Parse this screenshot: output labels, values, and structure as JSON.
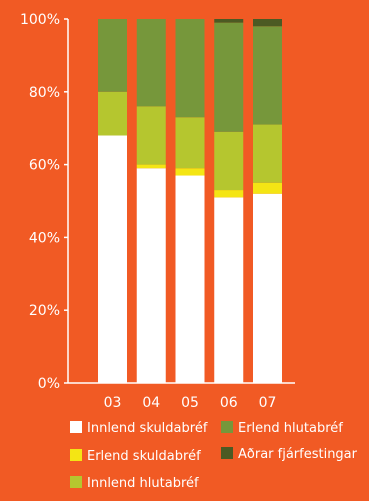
{
  "chart_data": {
    "type": "bar",
    "stacked": true,
    "categories": [
      "03",
      "04",
      "05",
      "06",
      "07"
    ],
    "series": [
      {
        "name": "Innlend skuldabréf",
        "color": "#ffffff",
        "values": [
          68,
          59,
          57,
          51,
          52
        ]
      },
      {
        "name": "Erlend skuldabréf",
        "color": "#f4e514",
        "values": [
          0,
          1,
          2,
          2,
          3
        ]
      },
      {
        "name": "Innlend hlutabréf",
        "color": "#b5c62f",
        "values": [
          12,
          16,
          14,
          16,
          16
        ]
      },
      {
        "name": "Erlend hlutabréf",
        "color": "#76973b",
        "values": [
          20,
          24,
          27,
          30,
          27
        ]
      },
      {
        "name": "Aðrar fjárfestingar",
        "color": "#4c5a23",
        "values": [
          0,
          0,
          0,
          1,
          2
        ]
      }
    ],
    "y_ticks": [
      "0%",
      "20%",
      "40%",
      "60%",
      "80%",
      "100%"
    ],
    "ylim": [
      0,
      100
    ],
    "legend_position": "bottom",
    "grid": false
  }
}
